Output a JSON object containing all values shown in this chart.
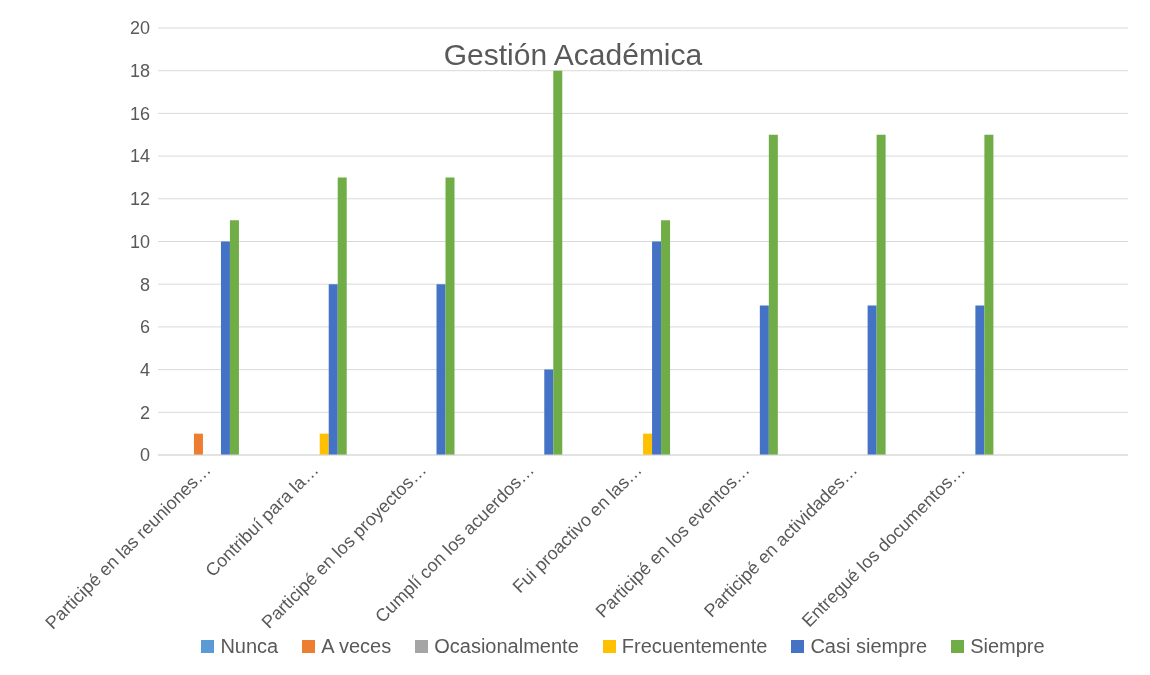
{
  "chart_data": {
    "type": "bar",
    "title": "Gestión Académica",
    "categories": [
      "Participé en las reuniones…",
      "Contribuí para la…",
      "Participé en los proyectos…",
      "Cumplí con los acuerdos…",
      "Fui proactivo en las…",
      "Participé en los eventos…",
      "Participé en actividades…",
      "Entregué los documentos…",
      null
    ],
    "series": [
      {
        "name": "Nunca",
        "color": "#5b9bd5",
        "values": [
          null,
          null,
          null,
          null,
          null,
          null,
          null,
          null,
          null
        ]
      },
      {
        "name": "A veces",
        "color": "#ed7d31",
        "values": [
          1,
          null,
          null,
          null,
          null,
          null,
          null,
          null,
          null
        ]
      },
      {
        "name": "Ocasionalmente",
        "color": "#a5a5a5",
        "values": [
          null,
          null,
          null,
          null,
          null,
          null,
          null,
          null,
          null
        ]
      },
      {
        "name": "Frecuentemente",
        "color": "#ffc000",
        "values": [
          null,
          1,
          null,
          null,
          1,
          null,
          null,
          null,
          null
        ]
      },
      {
        "name": "Casi siempre",
        "color": "#4472c4",
        "values": [
          10,
          8,
          8,
          4,
          10,
          7,
          7,
          7,
          null
        ]
      },
      {
        "name": "Siempre",
        "color": "#70ad47",
        "values": [
          11,
          13,
          13,
          18,
          11,
          15,
          15,
          15,
          null
        ]
      }
    ],
    "ylim": [
      0,
      20
    ],
    "yticks": [
      0,
      2,
      4,
      6,
      8,
      10,
      12,
      14,
      16,
      18,
      20
    ],
    "grid": "y",
    "legend": "bottom"
  }
}
